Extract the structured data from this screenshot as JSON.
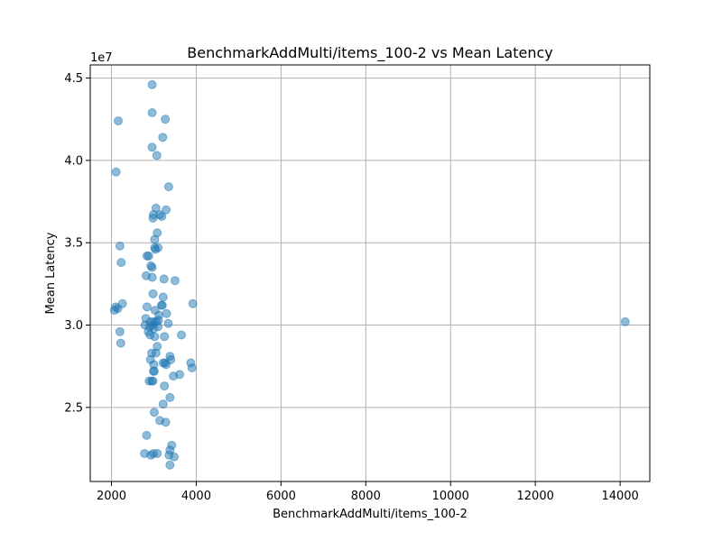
{
  "chart_data": {
    "type": "scatter",
    "title": "BenchmarkAddMulti/items_100-2 vs Mean Latency",
    "xlabel": "BenchmarkAddMulti/items_100-2",
    "ylabel": "Mean Latency",
    "y_offset_label": "1e7",
    "xlim": [
      1500,
      14700
    ],
    "ylim": [
      20500000.0,
      45800000.0
    ],
    "x_ticks": [
      2000,
      4000,
      6000,
      8000,
      10000,
      12000,
      14000
    ],
    "x_tick_labels": [
      "2000",
      "4000",
      "6000",
      "8000",
      "10000",
      "12000",
      "14000"
    ],
    "y_ticks": [
      25000000.0,
      30000000.0,
      35000000.0,
      40000000.0,
      45000000.0
    ],
    "y_tick_labels": [
      "2.5",
      "3.0",
      "3.5",
      "4.0",
      "4.5"
    ],
    "grid": true,
    "marker_color": "#1f77b4",
    "marker_alpha": 0.5,
    "points": [
      [
        2960,
        44600000
      ],
      [
        2960,
        42900000
      ],
      [
        3270,
        42500000
      ],
      [
        2160,
        42400000
      ],
      [
        3210,
        41400000
      ],
      [
        2960,
        40800000
      ],
      [
        3070,
        40300000
      ],
      [
        2110,
        39300000
      ],
      [
        3350,
        38400000
      ],
      [
        3050,
        37100000
      ],
      [
        3290,
        37000000
      ],
      [
        3140,
        36700000
      ],
      [
        2990,
        36700000
      ],
      [
        3190,
        36600000
      ],
      [
        2980,
        36500000
      ],
      [
        3080,
        35600000
      ],
      [
        3020,
        35200000
      ],
      [
        2200,
        34800000
      ],
      [
        3100,
        34700000
      ],
      [
        3020,
        34700000
      ],
      [
        3040,
        34600000
      ],
      [
        2840,
        34200000
      ],
      [
        2880,
        34200000
      ],
      [
        2230,
        33800000
      ],
      [
        2930,
        33600000
      ],
      [
        2960,
        33500000
      ],
      [
        2820,
        33000000
      ],
      [
        2960,
        32900000
      ],
      [
        3240,
        32800000
      ],
      [
        3500,
        32700000
      ],
      [
        2980,
        31900000
      ],
      [
        3220,
        31700000
      ],
      [
        2260,
        31300000
      ],
      [
        3920,
        31300000
      ],
      [
        3200,
        31200000
      ],
      [
        3180,
        31200000
      ],
      [
        2100,
        31100000
      ],
      [
        2840,
        31100000
      ],
      [
        2150,
        31000000
      ],
      [
        2070,
        30900000
      ],
      [
        3030,
        30900000
      ],
      [
        3300,
        30700000
      ],
      [
        3120,
        30600000
      ],
      [
        2810,
        30400000
      ],
      [
        2920,
        30200000
      ],
      [
        3060,
        30200000
      ],
      [
        3000,
        30200000
      ],
      [
        3110,
        30300000
      ],
      [
        2790,
        30000000
      ],
      [
        2960,
        30000000
      ],
      [
        3340,
        30100000
      ],
      [
        2900,
        29900000
      ],
      [
        3000,
        29800000
      ],
      [
        3100,
        29900000
      ],
      [
        2200,
        29600000
      ],
      [
        2870,
        29600000
      ],
      [
        2910,
        29400000
      ],
      [
        3020,
        29300000
      ],
      [
        3250,
        29300000
      ],
      [
        3650,
        29400000
      ],
      [
        2220,
        28900000
      ],
      [
        3080,
        28700000
      ],
      [
        2950,
        28300000
      ],
      [
        3050,
        28300000
      ],
      [
        3380,
        28100000
      ],
      [
        2920,
        27900000
      ],
      [
        3400,
        27900000
      ],
      [
        3220,
        27700000
      ],
      [
        3260,
        27700000
      ],
      [
        3870,
        27700000
      ],
      [
        3000,
        27600000
      ],
      [
        3290,
        27600000
      ],
      [
        3900,
        27400000
      ],
      [
        3010,
        27200000
      ],
      [
        2990,
        27200000
      ],
      [
        3610,
        27000000
      ],
      [
        3460,
        26900000
      ],
      [
        2890,
        26600000
      ],
      [
        2980,
        26600000
      ],
      [
        2950,
        26600000
      ],
      [
        3250,
        26300000
      ],
      [
        3380,
        25600000
      ],
      [
        3220,
        25200000
      ],
      [
        3010,
        24700000
      ],
      [
        3140,
        24200000
      ],
      [
        3280,
        24100000
      ],
      [
        2830,
        23300000
      ],
      [
        3420,
        22700000
      ],
      [
        3380,
        22400000
      ],
      [
        2780,
        22200000
      ],
      [
        3080,
        22200000
      ],
      [
        2930,
        22100000
      ],
      [
        2990,
        22200000
      ],
      [
        3360,
        22100000
      ],
      [
        3480,
        22000000
      ],
      [
        3380,
        21500000
      ],
      [
        14120,
        30200000
      ]
    ]
  }
}
